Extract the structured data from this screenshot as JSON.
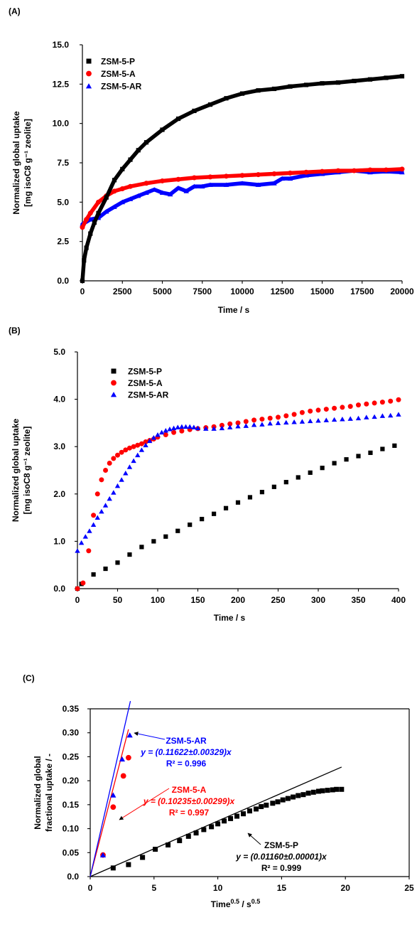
{
  "colors": {
    "p": "#000000",
    "a": "#ff0000",
    "ar": "#0000ff"
  },
  "chart_data": [
    {
      "panel": "(A)",
      "type": "scatter",
      "xlabel": "Time / s",
      "ylabel_line1": "Normalized global uptake",
      "ylabel_line2": "[mg isoC8 g⁻¹ zeolite]",
      "xlim": [
        0,
        20000
      ],
      "ylim": [
        0,
        15
      ],
      "xticks": [
        0,
        2500,
        5000,
        7500,
        10000,
        12500,
        15000,
        17500,
        20000
      ],
      "yticks": [
        "0.0",
        "2.5",
        "5.0",
        "7.5",
        "10.0",
        "12.5",
        "15.0"
      ],
      "legend_position": "top-left",
      "series": [
        {
          "name": "ZSM-5-P",
          "marker": "square",
          "x": [
            0,
            100,
            250,
            500,
            750,
            1000,
            1500,
            2000,
            2500,
            3000,
            3500,
            4000,
            5000,
            6000,
            7000,
            8000,
            9000,
            10000,
            11000,
            12000,
            13000,
            14000,
            15000,
            16000,
            17000,
            18000,
            19000,
            20000
          ],
          "values": [
            0,
            1.3,
            2.1,
            3.0,
            3.7,
            4.3,
            5.3,
            6.4,
            7.1,
            7.7,
            8.3,
            8.8,
            9.6,
            10.3,
            10.8,
            11.2,
            11.6,
            11.9,
            12.1,
            12.2,
            12.35,
            12.45,
            12.55,
            12.6,
            12.7,
            12.8,
            12.9,
            13.0
          ]
        },
        {
          "name": "ZSM-5-A",
          "marker": "circle",
          "x": [
            0,
            250,
            500,
            1000,
            1500,
            2000,
            2500,
            3000,
            4000,
            5000,
            6000,
            7000,
            8000,
            9000,
            10000,
            11000,
            12000,
            13000,
            14000,
            15000,
            16000,
            17000,
            18000,
            19000,
            20000
          ],
          "values": [
            3.4,
            3.9,
            4.3,
            5.0,
            5.4,
            5.7,
            5.85,
            6.0,
            6.2,
            6.35,
            6.45,
            6.55,
            6.6,
            6.65,
            6.7,
            6.75,
            6.8,
            6.85,
            6.9,
            6.95,
            7.0,
            7.0,
            7.05,
            7.05,
            7.1
          ]
        },
        {
          "name": "ZSM-5-AR",
          "marker": "triangle",
          "x": [
            0,
            500,
            1000,
            1500,
            2000,
            2500,
            3000,
            3500,
            4000,
            4500,
            5000,
            5500,
            6000,
            6500,
            7000,
            7500,
            8000,
            9000,
            10000,
            11000,
            12000,
            12500,
            13000,
            14000,
            15000,
            16000,
            17000,
            18000,
            19000,
            20000
          ],
          "values": [
            3.6,
            3.9,
            4.0,
            4.4,
            4.7,
            5.0,
            5.2,
            5.4,
            5.6,
            5.8,
            5.6,
            5.5,
            5.9,
            5.7,
            6.0,
            6.0,
            6.1,
            6.1,
            6.2,
            6.1,
            6.2,
            6.5,
            6.5,
            6.7,
            6.8,
            6.9,
            7.0,
            6.9,
            6.95,
            6.9
          ]
        }
      ]
    },
    {
      "panel": "(B)",
      "type": "scatter",
      "xlabel": "Time / s",
      "ylabel_line1": "Normalized global uptake",
      "ylabel_line2": "[mg isoC8 g⁻¹ zeolite]",
      "xlim": [
        0,
        400
      ],
      "ylim": [
        0,
        5
      ],
      "xticks": [
        0,
        50,
        100,
        150,
        200,
        250,
        300,
        350,
        400
      ],
      "yticks": [
        "0.0",
        "1.0",
        "2.0",
        "3.0",
        "4.0",
        "5.0"
      ],
      "legend_position": "top-left",
      "series": [
        {
          "name": "ZSM-5-P",
          "marker": "square",
          "x": [
            0,
            5,
            20,
            35,
            50,
            65,
            80,
            95,
            110,
            125,
            140,
            155,
            170,
            185,
            200,
            215,
            230,
            245,
            260,
            275,
            290,
            305,
            320,
            335,
            350,
            365,
            380,
            395
          ],
          "values": [
            0,
            0.1,
            0.3,
            0.42,
            0.55,
            0.72,
            0.88,
            1.0,
            1.1,
            1.22,
            1.35,
            1.47,
            1.58,
            1.7,
            1.82,
            1.93,
            2.04,
            2.15,
            2.25,
            2.35,
            2.45,
            2.55,
            2.65,
            2.73,
            2.8,
            2.87,
            2.95,
            3.02
          ]
        },
        {
          "name": "ZSM-5-A",
          "marker": "circle",
          "x": [
            0,
            7,
            14,
            20,
            25,
            30,
            35,
            40,
            45,
            50,
            55,
            60,
            65,
            70,
            75,
            80,
            85,
            90,
            95,
            100,
            110,
            120,
            130,
            140,
            150,
            160,
            170,
            180,
            190,
            200,
            210,
            220,
            230,
            240,
            250,
            260,
            270,
            280,
            290,
            300,
            310,
            320,
            330,
            340,
            350,
            360,
            370,
            380,
            390,
            400
          ],
          "values": [
            0,
            0.12,
            0.8,
            1.55,
            2.0,
            2.3,
            2.5,
            2.65,
            2.75,
            2.82,
            2.88,
            2.93,
            2.97,
            3.0,
            3.03,
            3.06,
            3.1,
            3.13,
            3.16,
            3.2,
            3.25,
            3.3,
            3.33,
            3.36,
            3.38,
            3.4,
            3.42,
            3.45,
            3.48,
            3.5,
            3.53,
            3.56,
            3.58,
            3.6,
            3.62,
            3.65,
            3.68,
            3.72,
            3.75,
            3.77,
            3.79,
            3.81,
            3.83,
            3.85,
            3.88,
            3.9,
            3.92,
            3.94,
            3.96,
            3.99
          ]
        },
        {
          "name": "ZSM-5-AR",
          "marker": "triangle",
          "x": [
            0,
            5,
            10,
            15,
            20,
            25,
            30,
            35,
            40,
            45,
            50,
            55,
            60,
            65,
            70,
            75,
            80,
            85,
            90,
            95,
            100,
            105,
            110,
            115,
            120,
            125,
            130,
            135,
            140,
            145,
            150,
            160,
            170,
            180,
            190,
            200,
            210,
            220,
            230,
            240,
            250,
            260,
            270,
            280,
            290,
            300,
            310,
            320,
            330,
            340,
            350,
            360,
            370,
            380,
            390,
            400
          ],
          "values": [
            0.8,
            0.97,
            1.1,
            1.22,
            1.35,
            1.5,
            1.63,
            1.76,
            1.9,
            2.03,
            2.17,
            2.3,
            2.44,
            2.57,
            2.7,
            2.82,
            2.93,
            3.03,
            3.12,
            3.19,
            3.25,
            3.3,
            3.34,
            3.37,
            3.39,
            3.41,
            3.42,
            3.42,
            3.42,
            3.41,
            3.39,
            3.38,
            3.38,
            3.39,
            3.41,
            3.43,
            3.44,
            3.46,
            3.47,
            3.49,
            3.5,
            3.51,
            3.52,
            3.53,
            3.54,
            3.55,
            3.56,
            3.57,
            3.58,
            3.59,
            3.6,
            3.62,
            3.63,
            3.65,
            3.66,
            3.68
          ]
        }
      ]
    },
    {
      "panel": "(C)",
      "type": "scatter",
      "xlabel": "Time",
      "xlabel_sup1": "0.5",
      "xlabel_mid": " / s",
      "xlabel_sup2": "0.5",
      "ylabel_line1": "Normalized global",
      "ylabel_line2": "fractional uptake / -",
      "xlim": [
        0,
        25
      ],
      "ylim": [
        0,
        0.35
      ],
      "xticks": [
        0,
        5,
        10,
        15,
        20,
        25
      ],
      "yticks": [
        "0.0",
        "0.05",
        "0.10",
        "0.15",
        "0.20",
        "0.25",
        "0.30",
        "0.35"
      ],
      "series": [
        {
          "name": "ZSM-5-P",
          "marker": "square",
          "x": [
            1.8,
            3.0,
            4.1,
            5.1,
            6.1,
            7.0,
            7.7,
            8.3,
            8.9,
            9.5,
            10.0,
            10.5,
            11.0,
            11.5,
            12.0,
            12.5,
            13.0,
            13.4,
            13.8,
            14.3,
            14.7,
            15.1,
            15.5,
            15.9,
            16.3,
            16.7,
            17.1,
            17.5,
            17.9,
            18.2,
            18.6,
            19.0,
            19.3,
            19.7
          ],
          "values": [
            0.018,
            0.025,
            0.04,
            0.057,
            0.066,
            0.075,
            0.084,
            0.091,
            0.098,
            0.104,
            0.11,
            0.116,
            0.121,
            0.126,
            0.131,
            0.137,
            0.141,
            0.146,
            0.149,
            0.153,
            0.156,
            0.16,
            0.163,
            0.166,
            0.169,
            0.171,
            0.174,
            0.176,
            0.178,
            0.179,
            0.18,
            0.181,
            0.182,
            0.182
          ],
          "fit_slope": 0.0116,
          "fit_xmax": 19.7,
          "fit_label": "ZSM-5-P",
          "fit_equation": "y = (0.01160±0.00001)x",
          "fit_r2": "R² = 0.999"
        },
        {
          "name": "ZSM-5-A",
          "marker": "circle",
          "x": [
            1.0,
            1.8,
            2.6,
            3.0
          ],
          "values": [
            0.045,
            0.145,
            0.21,
            0.248
          ],
          "fit_slope": 0.10235,
          "fit_xmax": 3.0,
          "fit_label": "ZSM-5-A",
          "fit_equation": "y = (0.10235±0.00299)x",
          "fit_r2": "R² = 0.997"
        },
        {
          "name": "ZSM-5-AR",
          "marker": "triangle",
          "x": [
            1.0,
            1.8,
            2.5,
            3.1
          ],
          "values": [
            0.045,
            0.17,
            0.245,
            0.295
          ],
          "fit_slope": 0.11622,
          "fit_xmax": 3.15,
          "fit_label": "ZSM-5-AR",
          "fit_equation": "y = (0.11622±0.00329)x",
          "fit_r2": "R² = 0.996"
        }
      ]
    }
  ]
}
